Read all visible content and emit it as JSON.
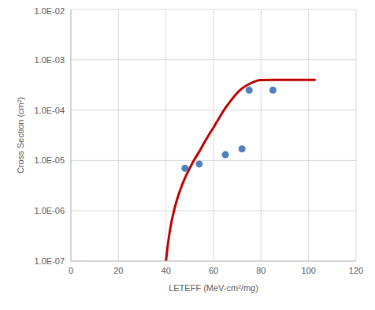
{
  "chart_data": {
    "type": "scatter",
    "x_label": "LETEFF (MeV-cm²/mg)",
    "y_label": "Cross Section (cm²)",
    "log": "y",
    "grid": true,
    "xlim": [
      0,
      120
    ],
    "xticks": [
      0,
      20,
      40,
      60,
      80,
      100,
      120
    ],
    "ylim": [
      1e-07,
      0.01
    ],
    "yticks": [
      {
        "value": 1e-07,
        "label": "1.0E-07"
      },
      {
        "value": 1e-06,
        "label": "1.0E-06"
      },
      {
        "value": 1e-05,
        "label": "1.0E-05"
      },
      {
        "value": 0.0001,
        "label": "1.0E-04"
      },
      {
        "value": 0.001,
        "label": "1.0E-03"
      },
      {
        "value": 0.01,
        "label": "1.0E-02"
      }
    ],
    "series": [
      {
        "type": "line",
        "color": "#c00000",
        "marker": "none",
        "line_style": "solid",
        "x": [
          40,
          41,
          42,
          44,
          46,
          48,
          50,
          52,
          54,
          56,
          58,
          60,
          62,
          65,
          68,
          70,
          72,
          75,
          78,
          80,
          85,
          103
        ],
        "values": [
          1e-07,
          2.5e-07,
          5e-07,
          1.3e-06,
          2.6e-06,
          4.5e-06,
          7e-06,
          1.05e-05,
          1.5e-05,
          2.2e-05,
          3.2e-05,
          4.5e-05,
          6.5e-05,
          0.00011,
          0.00017,
          0.00022,
          0.00027,
          0.00033,
          0.00038,
          0.000395,
          0.0004,
          0.0004
        ]
      },
      {
        "type": "scatter",
        "color": "#4f81bd",
        "marker": "circle",
        "x": [
          48,
          54,
          65,
          72,
          75,
          85
        ],
        "values": [
          7e-06,
          8.5e-06,
          1.3e-05,
          1.7e-05,
          0.00025,
          0.00025
        ]
      }
    ]
  }
}
